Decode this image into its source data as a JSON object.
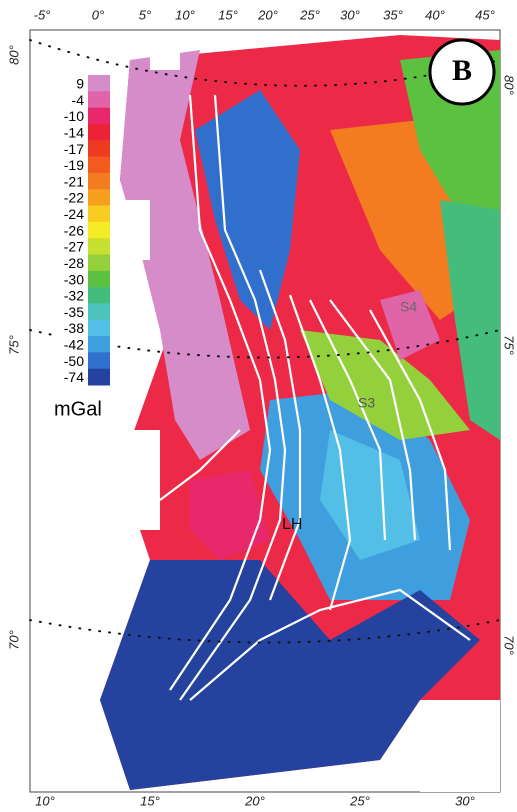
{
  "panel_label": "B",
  "top_longitudes": [
    "-5°",
    "0°",
    "5°",
    "10°",
    "15°",
    "20°",
    "25°",
    "30°",
    "35°",
    "40°",
    "45°"
  ],
  "bottom_longitudes": [
    "10°",
    "15°",
    "20°",
    "25°",
    "30°"
  ],
  "left_latitudes": [
    "80°",
    "75°",
    "70°"
  ],
  "right_latitudes": [
    "80°",
    "75°",
    "70°"
  ],
  "colorbar": {
    "unit": "mGal",
    "levels": [
      {
        "value": 9,
        "color": "#d58cc8"
      },
      {
        "value": -4,
        "color": "#e064a8"
      },
      {
        "value": -10,
        "color": "#e8286a"
      },
      {
        "value": -14,
        "color": "#ec2238"
      },
      {
        "value": -17,
        "color": "#ef3a22"
      },
      {
        "value": -19,
        "color": "#f25a20"
      },
      {
        "value": -21,
        "color": "#f47c20"
      },
      {
        "value": -22,
        "color": "#f7a020"
      },
      {
        "value": -24,
        "color": "#f9cc22"
      },
      {
        "value": -26,
        "color": "#f4ec24"
      },
      {
        "value": -27,
        "color": "#c8e030"
      },
      {
        "value": -28,
        "color": "#94d03c"
      },
      {
        "value": -30,
        "color": "#5cc040"
      },
      {
        "value": -32,
        "color": "#44bc7c"
      },
      {
        "value": -35,
        "color": "#4cc4bc"
      },
      {
        "value": -38,
        "color": "#54bfe6"
      },
      {
        "value": -42,
        "color": "#3e9ede"
      },
      {
        "value": -50,
        "color": "#3070cc"
      },
      {
        "value": -74,
        "color": "#24429e"
      }
    ]
  },
  "annotations": [
    "S4",
    "S3",
    "LH"
  ]
}
